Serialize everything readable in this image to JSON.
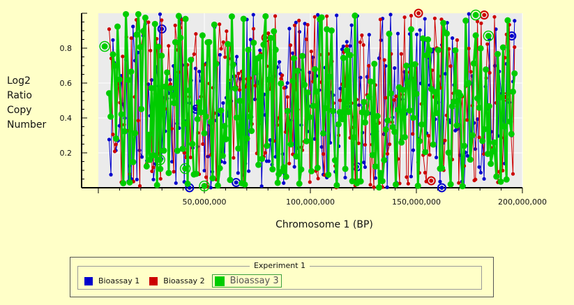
{
  "chart_data": {
    "type": "line",
    "title": "",
    "ylabel_lines": [
      "Log2",
      "Ratio",
      "Copy",
      "Number"
    ],
    "xlabel": "Chromosome 1 (BP)",
    "xlim": [
      0,
      200000000
    ],
    "ylim": [
      0,
      1
    ],
    "x_ticks": [
      {
        "value": 50000000,
        "label": "50,000,000"
      },
      {
        "value": 100000000,
        "label": "100,000,000"
      },
      {
        "value": 150000000,
        "label": "150,000,000"
      },
      {
        "value": 200000000,
        "label": "200,000,000"
      }
    ],
    "y_ticks": [
      {
        "value": 0.2,
        "label": "0.2"
      },
      {
        "value": 0.4,
        "label": "0.4"
      },
      {
        "value": 0.6,
        "label": "0.6"
      },
      {
        "value": 0.8,
        "label": "0.8"
      }
    ],
    "grid": true,
    "x_start": 5000000,
    "x_step": 800000,
    "point_count": 240,
    "series": [
      {
        "name": "Bioassay 1",
        "color": "#0000cc",
        "seed": 11,
        "highlighted": [
          {
            "x": 30000000,
            "y": 0.91
          },
          {
            "x": 43000000,
            "y": 0.0
          },
          {
            "x": 46000000,
            "y": 0.45
          },
          {
            "x": 65000000,
            "y": 0.03
          },
          {
            "x": 122000000,
            "y": 0.12
          },
          {
            "x": 162000000,
            "y": 0.0
          },
          {
            "x": 195000000,
            "y": 0.87
          }
        ]
      },
      {
        "name": "Bioassay 2",
        "color": "#cc0000",
        "seed": 29,
        "highlighted": [
          {
            "x": 79000000,
            "y": 0.86
          },
          {
            "x": 151000000,
            "y": 1.0
          },
          {
            "x": 157000000,
            "y": 0.04
          },
          {
            "x": 182000000,
            "y": 0.99
          },
          {
            "x": 192000000,
            "y": 0.52
          }
        ]
      },
      {
        "name": "Bioassay 3",
        "color": "#00cc00",
        "seed": 47,
        "bold": true,
        "highlighted": [
          {
            "x": 3000000,
            "y": 0.81
          },
          {
            "x": 29000000,
            "y": 0.16
          },
          {
            "x": 41000000,
            "y": 0.11
          },
          {
            "x": 50000000,
            "y": 0.01
          },
          {
            "x": 178000000,
            "y": 0.99
          },
          {
            "x": 184000000,
            "y": 0.87
          }
        ]
      }
    ]
  },
  "legend": {
    "title": "Experiment 1",
    "items": [
      {
        "label": "Bioassay 1",
        "color": "#0000cc"
      },
      {
        "label": "Bioassay 2",
        "color": "#cc0000"
      },
      {
        "label": "Bioassay 3",
        "color": "#00cc00"
      }
    ]
  }
}
